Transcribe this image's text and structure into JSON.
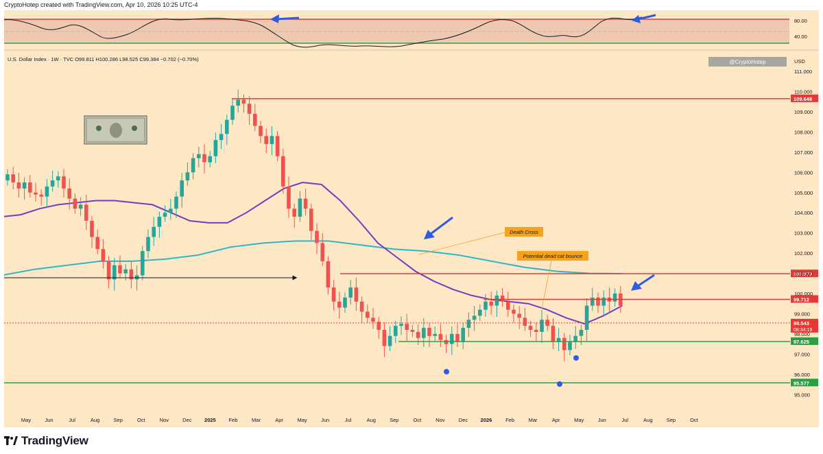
{
  "header": {
    "text": "CryptoHotep created with TradingView.com, Apr 10, 2026 10:25 UTC-4"
  },
  "legend": {
    "text": "U.S. Dollar Index · 1W · TVC  O99.811  H100.286  L98.525  C99.384  −0.702 (−0.70%)"
  },
  "watermark": {
    "text": "@CryptoHotep"
  },
  "currency": {
    "text": "USD"
  },
  "footer": {
    "brand": "TradingView"
  },
  "colors": {
    "background": "#fde7c5",
    "up_candle": "#26a69a",
    "down_candle": "#ef5350",
    "ma_short": "#6c3ec1",
    "ma_long": "#2bb6c9",
    "resistance": "#e53935",
    "support": "#2e9e44",
    "arrow": "#2e5be0",
    "note": "#f7a21b"
  },
  "annotations": {
    "death_cross": "Death Cross",
    "dead_cat": "Potential dead cat bounce"
  },
  "chart_data": [
    {
      "type": "line",
      "name": "oscillator-pane",
      "y_levels": [
        80.0,
        40.0
      ],
      "y_labels": [
        "80.00",
        "40.00"
      ]
    },
    {
      "type": "candlestick",
      "name": "DXY weekly",
      "ylim": [
        94.5,
        111.7
      ],
      "y_ticks": [
        "95.000",
        "96.000",
        "97.000",
        "98.000",
        "99.000",
        "100.000",
        "101.000",
        "102.000",
        "103.000",
        "104.000",
        "105.000",
        "106.000",
        "107.000",
        "108.000",
        "109.000",
        "110.000",
        "111.000"
      ],
      "x_ticks": [
        "May",
        "Jun",
        "Jul",
        "Aug",
        "Sep",
        "Oct",
        "Nov",
        "Dec",
        "2025",
        "Feb",
        "Mar",
        "Apr",
        "May",
        "Jun",
        "Jul",
        "Aug",
        "Sep",
        "Oct",
        "Nov",
        "Dec",
        "2026",
        "Feb",
        "Mar",
        "Apr",
        "May",
        "Jun",
        "Jul",
        "Aug",
        "Sep",
        "Oct"
      ],
      "price_labels": [
        {
          "value": 109.648,
          "text": "109.648",
          "color": "#e53935"
        },
        {
          "value": 100.979,
          "text": "100.979",
          "color": "#e53935"
        },
        {
          "value": 99.712,
          "text": "99.712",
          "color": "#e53935"
        },
        {
          "value": 98.543,
          "text": "98.543",
          "sub": "08:34:19",
          "color": "#e53935"
        },
        {
          "value": 97.625,
          "text": "97.625",
          "color": "#2e9e44"
        },
        {
          "value": 95.577,
          "text": "95.577",
          "color": "#2e9e44"
        }
      ],
      "closes": [
        105.9,
        105.5,
        105.2,
        105.5,
        105.0,
        104.9,
        104.8,
        105.3,
        105.6,
        105.8,
        105.2,
        104.7,
        104.2,
        104.4,
        103.6,
        102.8,
        102.2,
        101.6,
        100.7,
        101.4,
        101.0,
        101.2,
        100.7,
        100.9,
        102.1,
        102.8,
        103.3,
        103.8,
        104.0,
        104.2,
        104.8,
        105.6,
        106.0,
        106.7,
        106.9,
        106.5,
        106.8,
        107.6,
        107.9,
        108.6,
        109.3,
        109.6,
        109.4,
        108.9,
        108.3,
        107.8,
        107.4,
        107.8,
        106.8,
        105.3,
        104.2,
        103.8,
        104.7,
        104.2,
        103.1,
        102.5,
        101.6,
        100.3,
        99.6,
        99.3,
        99.8,
        100.3,
        99.6,
        99.1,
        98.8,
        98.6,
        98.2,
        97.4,
        97.9,
        98.4,
        98.5,
        98.2,
        98.1,
        97.8,
        98.3,
        97.9,
        98.0,
        97.7,
        97.5,
        98.0,
        97.6,
        98.3,
        98.7,
        98.9,
        99.2,
        99.6,
        99.4,
        99.9,
        99.6,
        99.2,
        99.0,
        98.8,
        98.4,
        98.2,
        98.1,
        98.7,
        98.4,
        97.6,
        97.8,
        97.2,
        97.6,
        97.9,
        98.2,
        99.4,
        99.8,
        99.4,
        99.8,
        99.6,
        100.0,
        99.4
      ],
      "ma_short_approx": [
        103.8,
        103.9,
        104.2,
        104.4,
        104.5,
        104.6,
        104.6,
        104.5,
        104.4,
        104.0,
        103.6,
        103.5,
        103.5,
        104.0,
        104.6,
        105.2,
        105.5,
        105.4,
        104.6,
        103.6,
        102.5,
        101.8,
        101.1,
        100.6,
        100.2,
        99.9,
        99.7,
        99.6,
        99.5,
        99.2,
        98.8,
        98.5,
        98.9,
        99.4
      ],
      "ma_long_approx": [
        100.9,
        101.2,
        101.4,
        101.6,
        101.6,
        101.7,
        101.9,
        102.3,
        102.5,
        102.6,
        102.6,
        102.4,
        102.2,
        102.1,
        101.9,
        101.6,
        101.3,
        101.1,
        101.0,
        100.98
      ]
    }
  ]
}
